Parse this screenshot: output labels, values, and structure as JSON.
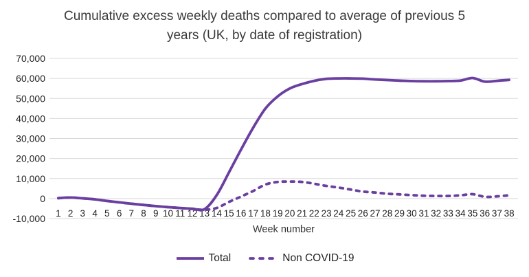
{
  "chart_data": {
    "type": "line",
    "title": "Cumulative excess weekly deaths compared to average of previous 5 years (UK, by date of registration)",
    "xlabel": "Week number",
    "ylabel": "",
    "x": [
      1,
      2,
      3,
      4,
      5,
      6,
      7,
      8,
      9,
      10,
      11,
      12,
      13,
      14,
      15,
      16,
      17,
      18,
      19,
      20,
      21,
      22,
      23,
      24,
      25,
      26,
      27,
      28,
      29,
      30,
      31,
      32,
      33,
      34,
      35,
      36,
      37,
      38
    ],
    "series": [
      {
        "name": "Total",
        "style": "solid",
        "values": [
          200,
          500,
          100,
          -400,
          -1200,
          -1900,
          -2600,
          -3200,
          -3800,
          -4300,
          -4700,
          -5100,
          -5300,
          1700,
          13000,
          24500,
          35500,
          45000,
          51000,
          55000,
          57200,
          58800,
          59800,
          60000,
          60000,
          59900,
          59500,
          59200,
          58900,
          58700,
          58600,
          58600,
          58700,
          58900,
          60200,
          58400,
          58800,
          59300
        ]
      },
      {
        "name": "Non COVID-19",
        "style": "dashed",
        "values": [
          200,
          500,
          100,
          -400,
          -1200,
          -1900,
          -2600,
          -3200,
          -3800,
          -4300,
          -4700,
          -5200,
          -5600,
          -4700,
          -1700,
          1000,
          3800,
          7000,
          8300,
          8500,
          8300,
          7400,
          6300,
          5500,
          4500,
          3500,
          3000,
          2400,
          2100,
          1700,
          1400,
          1300,
          1300,
          1600,
          2200,
          900,
          1100,
          1600
        ]
      }
    ],
    "ylim": [
      -10000,
      70000
    ],
    "ytick_step": 10000,
    "ytick_labels": [
      "70,000",
      "60,000",
      "50,000",
      "40,000",
      "30,000",
      "20,000",
      "10,000",
      "0",
      "-10,000"
    ],
    "grid": true,
    "legend_position": "bottom",
    "line_color": "#6a3fa0",
    "grid_color": "#d9d9d9",
    "tick_color": "#1f1f1f",
    "title_color": "#3a3a3a"
  }
}
